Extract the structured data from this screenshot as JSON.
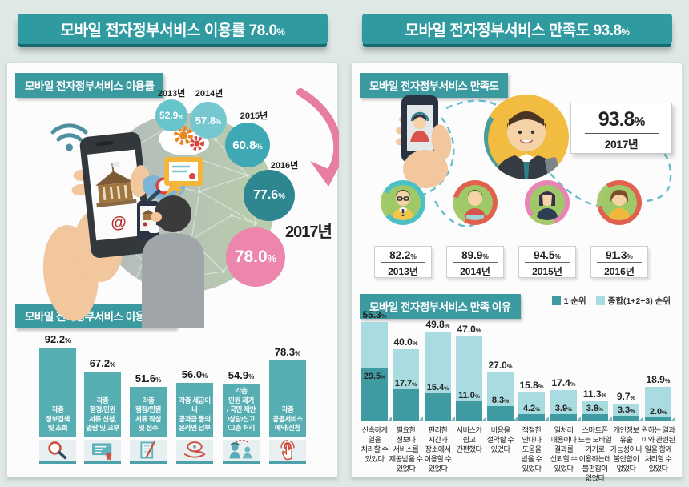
{
  "units": {
    "percent": "%"
  },
  "left_panel": {
    "header": {
      "title": "모바일 전자정부서비스 이용률",
      "value": "78.0"
    },
    "usage_section": {
      "title": "모바일 전자정부서비스 이용률",
      "bubbles": [
        {
          "year": "2013년",
          "value": "52.9"
        },
        {
          "year": "2014년",
          "value": "57.8"
        },
        {
          "year": "2015년",
          "value": "60.8"
        },
        {
          "year": "2016년",
          "value": "77.6"
        },
        {
          "year": "2017년",
          "value": "78.0"
        }
      ]
    },
    "purpose_section": {
      "title": "모바일 전자정부서비스 이용 목적",
      "bars": [
        {
          "value": "92.2",
          "label": "각종\n정보검색\n및 조회",
          "icon": "search"
        },
        {
          "value": "67.2",
          "label": "각종\n행정/민원\n서류 신청,\n열람 및 교부",
          "icon": "certificate"
        },
        {
          "value": "51.6",
          "label": "각종\n행정/민원\n서류 작성\n및 접수",
          "icon": "write"
        },
        {
          "value": "56.0",
          "label": "각종 세금이나\n공과금 등의\n온라인 납부",
          "icon": "payment"
        },
        {
          "value": "54.9",
          "label": "각종\n민원 제기\n/ 국민 제안\n/상담/신고\n/고충 처리",
          "icon": "counsel"
        },
        {
          "value": "78.3",
          "label": "각종\n공공서비스\n예약/신청",
          "icon": "click"
        }
      ]
    }
  },
  "right_panel": {
    "header": {
      "title": "모바일 전자정부서비스 만족도",
      "value": "93.8"
    },
    "satisfaction_section": {
      "title": "모바일 전자정부서비스 만족도",
      "current": {
        "value": "93.8",
        "year": "2017년"
      },
      "years": [
        {
          "value": "82.2",
          "year": "2013년"
        },
        {
          "value": "89.9",
          "year": "2014년"
        },
        {
          "value": "94.5",
          "year": "2015년"
        },
        {
          "value": "91.3",
          "year": "2016년"
        }
      ]
    },
    "reasons_section": {
      "title": "모바일 전자정부서비스 만족 이유",
      "legend": [
        {
          "label": "1 순위",
          "color": "#3f9aa1"
        },
        {
          "label": "종합(1+2+3) 순위",
          "color": "#a9dce1"
        }
      ],
      "bars": [
        {
          "total": "55.3",
          "first": "29.5",
          "label": "신속하게\n일을\n처리할 수\n있었다"
        },
        {
          "total": "40.0",
          "first": "17.7",
          "label": "필요한\n정보나\n서비스를\n제공받을 수\n있었다"
        },
        {
          "total": "49.8",
          "first": "15.4",
          "label": "편리한\n시간과\n장소에서\n이용할 수\n있었다"
        },
        {
          "total": "47.0",
          "first": "11.0",
          "label": "서비스가\n쉽고\n간편했다"
        },
        {
          "total": "27.0",
          "first": "8.3",
          "label": "비용을\n절약할 수\n있었다"
        },
        {
          "total": "15.8",
          "first": "4.2",
          "label": "적절한\n안내나\n도움을\n받을 수\n있었다"
        },
        {
          "total": "17.4",
          "first": "3.9",
          "label": "일처리\n내용이나\n결과를\n신뢰할 수\n있었다"
        },
        {
          "total": "11.3",
          "first": "3.8",
          "label": "스마트폰\n또는 모바일\n기기로\n이용하는데\n불편함이\n없었다"
        },
        {
          "total": "9.7",
          "first": "3.3",
          "label": "개인정보\n유출\n가능성이나\n불안함이\n없었다"
        },
        {
          "total": "18.9",
          "first": "2.0",
          "label": "원하는 일과\n이와 관련된\n일을 함께\n처리할 수\n있었다"
        }
      ]
    }
  },
  "colors": {
    "background": "#dfe8e4",
    "header_teal": "#2f9aa0",
    "section_teal": "#3b9aa0",
    "bar_teal": "#57aeb2",
    "stack_dark": "#3f9aa1",
    "stack_light": "#a9dce1",
    "bubble_2017_pink": "#ec86ac",
    "arrow_pink": "#e87da2",
    "accent_red": "#cf4f3e",
    "ring_green": "#a6c96b"
  },
  "chart_data": [
    {
      "type": "scatter",
      "title": "모바일 전자정부서비스 이용률",
      "x": [
        "2013년",
        "2014년",
        "2015년",
        "2016년",
        "2017년"
      ],
      "values": [
        52.9,
        57.8,
        60.8,
        77.6,
        78.0
      ],
      "unit": "%",
      "layout": "bubble timeline, bubble size grows with value, 2017 highlighted pink"
    },
    {
      "type": "bar",
      "title": "모바일 전자정부서비스 이용 목적",
      "categories": [
        "각종 정보검색 및 조회",
        "각종 행정/민원 서류 신청, 열람 및 교부",
        "각종 행정/민원 서류 작성 및 접수",
        "각종 세금이나 공과금 등의 온라인 납부",
        "각종 민원 제기 / 국민 제안 /상담/신고 /고충 처리",
        "각종 공공서비스 예약/신청"
      ],
      "values": [
        92.2,
        67.2,
        51.6,
        56.0,
        54.9,
        78.3
      ],
      "unit": "%",
      "ylim": [
        0,
        100
      ]
    },
    {
      "type": "bar",
      "title": "모바일 전자정부서비스 만족도",
      "categories": [
        "2013년",
        "2014년",
        "2015년",
        "2016년",
        "2017년"
      ],
      "values": [
        82.2,
        89.9,
        94.5,
        91.3,
        93.8
      ],
      "unit": "%",
      "layout": "avatar medallions per year, 2017 shown in large callout box"
    },
    {
      "type": "bar",
      "title": "모바일 전자정부서비스 만족 이유",
      "categories": [
        "신속하게 일을 처리할 수 있었다",
        "필요한 정보나 서비스를 제공받을 수 있었다",
        "편리한 시간과 장소에서 이용할 수 있었다",
        "서비스가 쉽고 간편했다",
        "비용을 절약할 수 있었다",
        "적절한 안내나 도움을 받을 수 있었다",
        "일처리 내용이나 결과를 신뢰할 수 있었다",
        "스마트폰 또는 모바일 기기로 이용하는데 불편함이 없었다",
        "개인정보 유출 가능성이나 불안함이 없었다",
        "원하는 일과 이와 관련된 일을 함께 처리할 수 있었다"
      ],
      "series": [
        {
          "name": "1 순위",
          "values": [
            29.5,
            17.7,
            15.4,
            11.0,
            8.3,
            4.2,
            3.9,
            3.8,
            3.3,
            2.0
          ]
        },
        {
          "name": "종합(1+2+3) 순위",
          "values": [
            55.3,
            40.0,
            49.8,
            47.0,
            27.0,
            15.8,
            17.4,
            11.3,
            9.7,
            18.9
          ]
        }
      ],
      "unit": "%",
      "ylim": [
        0,
        60
      ],
      "layout": "overlaid bars: dark '1순위' segment in front of light total bar, legend top-right"
    }
  ]
}
